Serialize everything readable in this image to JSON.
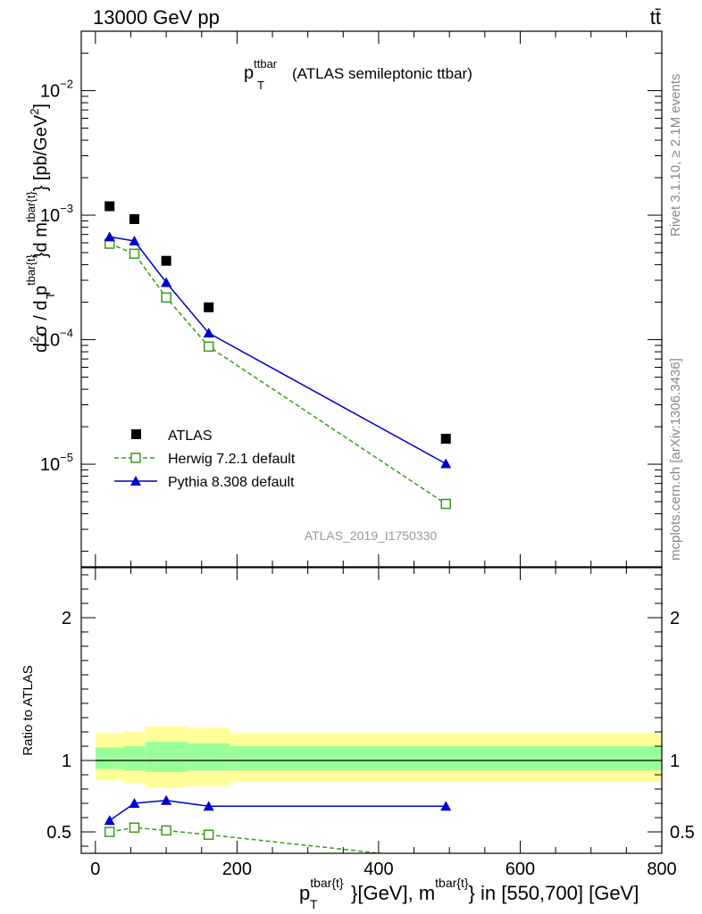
{
  "header": {
    "left": "13000 GeV pp",
    "right": "tt̄"
  },
  "side": {
    "rivet": "Rivet 3.1.10, ≥ 2.1M events",
    "site": "mcplots.cern.ch [arXiv:1306.3436]"
  },
  "colors": {
    "data": "#000000",
    "herwig": "#3a9a1a",
    "pythia": "#0000cc",
    "band_outer": "#ffff99",
    "band_inner": "#99ff99"
  },
  "chart_data": [
    {
      "type": "scatter",
      "title": "p_T^ttbar (ATLAS semileptonic ttbar)",
      "title_main": "p",
      "title_sub": "T",
      "title_sup": "ttbar",
      "title_rest": "(ATLAS semileptonic ttbar)",
      "ylabel": "d²σ / d p_T^{tbar{t}}d m^{tbar{t}} [pb/GeV²]",
      "ylabel_parts": {
        "a": "d",
        "a_sup": "2",
        "b": "σ  /  d p",
        "b_sub": "T",
        "b_sup": "tbar{t}",
        "c": "}d m",
        "c_sup": "tbar{t}",
        "d": "} [pb/GeV",
        "d_sup": "2",
        "e": "]"
      },
      "yscale": "log",
      "ylim": [
        1.5e-06,
        0.03
      ],
      "xlim": [
        -20,
        800
      ],
      "yticks": [
        {
          "value": 0.01,
          "base": "10",
          "exp": "−2"
        },
        {
          "value": 0.001,
          "base": "10",
          "exp": "−3"
        },
        {
          "value": 0.0001,
          "base": "10",
          "exp": "−4"
        },
        {
          "value": 1e-05,
          "base": "10",
          "exp": "−5"
        }
      ],
      "series": [
        {
          "name": "ATLAS",
          "marker": "square",
          "x": [
            20,
            55,
            100,
            160,
            495
          ],
          "y": [
            0.00118,
            0.00093,
            0.00043,
            0.000182,
            1.6e-05
          ]
        },
        {
          "name": "Herwig 7.2.1 default",
          "marker": "open-square",
          "line": "dashed",
          "x": [
            20,
            55,
            100,
            160,
            495
          ],
          "y": [
            0.00059,
            0.00049,
            0.000218,
            8.8e-05,
            4.8e-06
          ]
        },
        {
          "name": "Pythia 8.308 default",
          "marker": "triangle",
          "line": "solid",
          "x": [
            20,
            55,
            100,
            160,
            495
          ],
          "y": [
            0.00067,
            0.00062,
            0.000288,
            0.000113,
            1.01e-05
          ]
        }
      ],
      "legend": "bottom-left",
      "watermark": "ATLAS_2019_I1750330"
    },
    {
      "type": "line",
      "ylabel": "Ratio to ATLAS",
      "ylim": [
        0.35,
        2.35
      ],
      "xlim": [
        -20,
        800
      ],
      "yticks": [
        0.5,
        1,
        2
      ],
      "ytick_labels": [
        "0.5",
        "1",
        "2"
      ],
      "xticks": [
        0,
        200,
        400,
        600,
        800
      ],
      "xtick_labels": [
        "0",
        "200",
        "400",
        "600",
        "800"
      ],
      "xlabel_parts": {
        "a": "p",
        "a_sub": "T",
        "a_sup": "tbar{t}",
        "b": "}[GeV], m",
        "b_sup": "tbar{t}",
        "c": "} in [550,700] [GeV]"
      },
      "bands": [
        {
          "x0": 0,
          "x1": 40,
          "outer": [
            0.86,
            1.19
          ],
          "inner": [
            0.94,
            1.09
          ]
        },
        {
          "x0": 40,
          "x1": 70,
          "outer": [
            0.84,
            1.2
          ],
          "inner": [
            0.93,
            1.1
          ]
        },
        {
          "x0": 70,
          "x1": 130,
          "outer": [
            0.81,
            1.24
          ],
          "inner": [
            0.92,
            1.13
          ]
        },
        {
          "x0": 130,
          "x1": 190,
          "outer": [
            0.82,
            1.23
          ],
          "inner": [
            0.93,
            1.12
          ]
        },
        {
          "x0": 190,
          "x1": 800,
          "outer": [
            0.85,
            1.19
          ],
          "inner": [
            0.93,
            1.1
          ]
        }
      ],
      "reference": 1,
      "series": [
        {
          "name": "Herwig 7.2.1 default",
          "marker": "open-square",
          "line": "dashed",
          "x": [
            20,
            55,
            100,
            160,
            495
          ],
          "y": [
            0.5,
            0.53,
            0.51,
            0.48,
            0.3
          ]
        },
        {
          "name": "Pythia 8.308 default",
          "marker": "triangle",
          "line": "solid",
          "x": [
            20,
            55,
            100,
            160,
            495
          ],
          "y": [
            0.58,
            0.7,
            0.72,
            0.68,
            0.68
          ]
        }
      ]
    }
  ]
}
